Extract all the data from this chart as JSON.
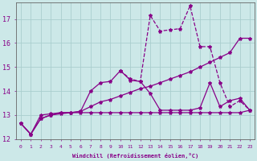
{
  "xlabel": "Windchill (Refroidissement éolien,°C)",
  "bg_color": "#cce8e8",
  "grid_color": "#aacece",
  "line_color": "#880088",
  "xlim": [
    -0.5,
    23.5
  ],
  "ylim": [
    12.0,
    17.7
  ],
  "yticks": [
    12,
    13,
    14,
    15,
    16,
    17
  ],
  "xticks": [
    0,
    1,
    2,
    3,
    4,
    5,
    6,
    7,
    8,
    9,
    10,
    11,
    12,
    13,
    14,
    15,
    16,
    17,
    18,
    19,
    20,
    21,
    22,
    23
  ],
  "line_flat_x": [
    0,
    1,
    2,
    3,
    4,
    5,
    6,
    7,
    8,
    9,
    10,
    11,
    12,
    13,
    14,
    15,
    16,
    17,
    18,
    19,
    20,
    21,
    22,
    23
  ],
  "line_flat_y": [
    12.65,
    12.2,
    13.0,
    13.05,
    13.1,
    13.1,
    13.1,
    13.1,
    13.1,
    13.1,
    13.1,
    13.1,
    13.1,
    13.1,
    13.1,
    13.1,
    13.1,
    13.1,
    13.1,
    13.1,
    13.1,
    13.1,
    13.1,
    13.2
  ],
  "line_slope_x": [
    0,
    1,
    2,
    3,
    4,
    5,
    6,
    7,
    8,
    9,
    10,
    11,
    12,
    13,
    14,
    15,
    16,
    17,
    18,
    19,
    20,
    21,
    22,
    23
  ],
  "line_slope_y": [
    12.65,
    12.2,
    12.85,
    13.0,
    13.05,
    13.1,
    13.15,
    13.35,
    13.55,
    13.65,
    13.8,
    13.95,
    14.1,
    14.2,
    14.35,
    14.5,
    14.65,
    14.8,
    15.0,
    15.2,
    15.4,
    15.6,
    16.2,
    16.2
  ],
  "line_mid_x": [
    0,
    1,
    2,
    3,
    4,
    5,
    6,
    7,
    8,
    9,
    10,
    11,
    12,
    13,
    14,
    15,
    16,
    17,
    18,
    19,
    20,
    21,
    22,
    23
  ],
  "line_mid_y": [
    12.65,
    12.2,
    12.85,
    13.0,
    13.1,
    13.1,
    13.15,
    14.0,
    14.35,
    14.4,
    14.85,
    14.45,
    14.4,
    13.9,
    13.2,
    13.2,
    13.2,
    13.2,
    13.3,
    14.35,
    13.35,
    13.6,
    13.7,
    13.2
  ],
  "line_spike_x": [
    10,
    11,
    12,
    13,
    14,
    15,
    16,
    17,
    18,
    19,
    20,
    21,
    22,
    23
  ],
  "line_spike_y": [
    14.85,
    14.5,
    14.4,
    17.15,
    16.5,
    16.55,
    16.6,
    17.55,
    15.85,
    15.85,
    14.35,
    13.35,
    13.6,
    13.2
  ],
  "marker": "*",
  "marker_size": 3,
  "linewidth": 0.9
}
